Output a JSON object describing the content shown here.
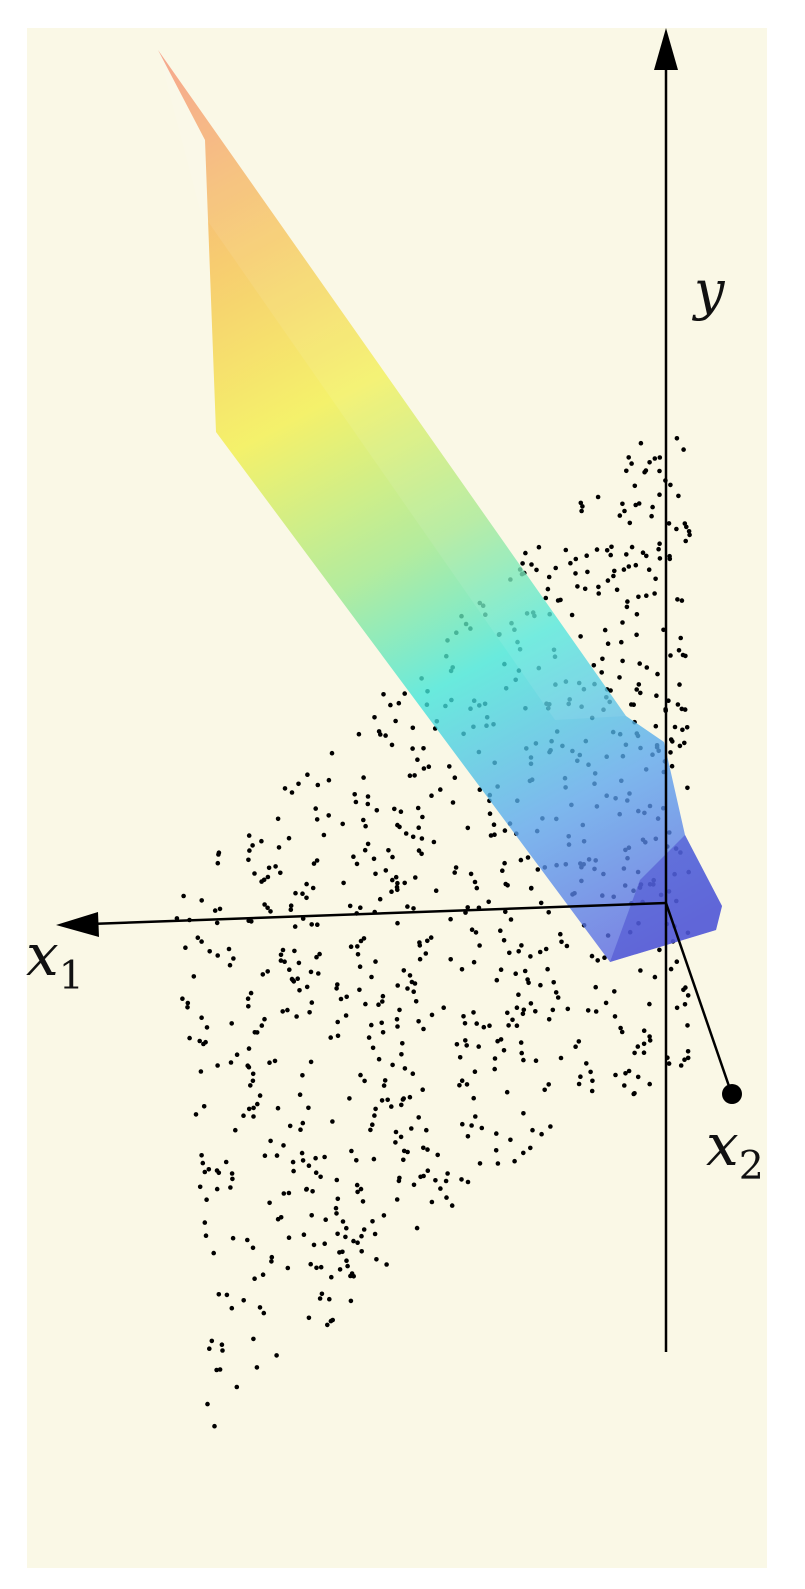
{
  "labels": {
    "y": {
      "main": "y",
      "sub": ""
    },
    "x1": {
      "main": "x",
      "sub": "1"
    },
    "x2": {
      "main": "x",
      "sub": "2"
    }
  },
  "colors": {
    "panel_background": "#faf8e6",
    "page_background": "#ffffff",
    "axis": "#000000",
    "points": "#000000",
    "surface_gradient": [
      "#f4876a",
      "#f6c24e",
      "#f3ef48",
      "#9fe88a",
      "#40e6da",
      "#5aa5ef",
      "#5763e2"
    ]
  },
  "scatter": {
    "point_count": 900,
    "description_free": true
  }
}
